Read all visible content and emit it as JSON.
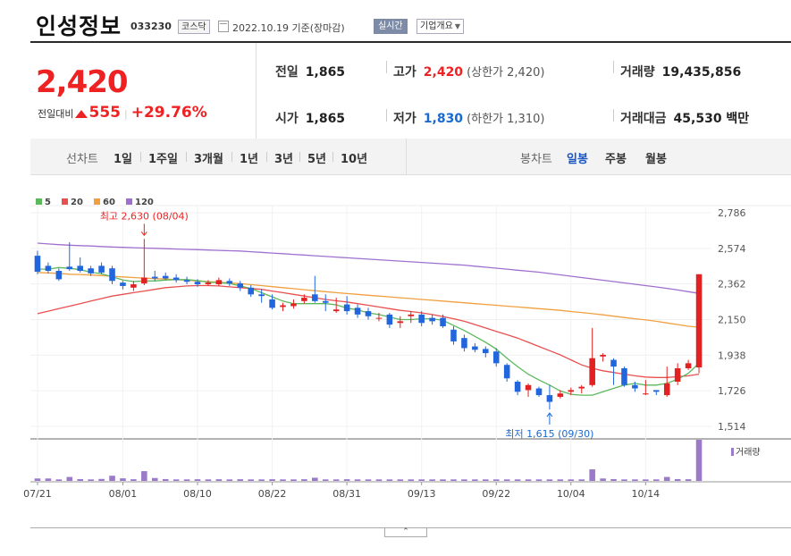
{
  "header": {
    "name": "인성정보",
    "code": "033230",
    "market": "코스닥",
    "date": "2022.10.19 기준(장마감)",
    "live": "실시간",
    "overview": "기업개요"
  },
  "price": {
    "current": "2,420",
    "change_label": "전일대비",
    "change": "555",
    "change_pct": "+29.76%"
  },
  "stats": {
    "prev_close_label": "전일",
    "prev_close": "1,865",
    "high_label": "고가",
    "high": "2,420",
    "high_sub": "(상한가 2,420)",
    "volume_label": "거래량",
    "volume": "19,435,856",
    "open_label": "시가",
    "open": "1,865",
    "low_label": "저가",
    "low": "1,830",
    "low_sub": "(하한가 1,310)",
    "amount_label": "거래대금",
    "amount": "45,530 백만"
  },
  "tabs": {
    "line_label": "선차트",
    "periods": [
      "1일",
      "1주일",
      "3개월",
      "1년",
      "3년",
      "5년",
      "10년"
    ],
    "candle_label": "봉차트",
    "candles": [
      "일봉",
      "주봉",
      "월봉"
    ],
    "active_candle": "일봉"
  },
  "colors": {
    "up": "#e22222",
    "down": "#2266dd",
    "ma5": "#5cb85c",
    "ma20": "#e85050",
    "ma60": "#f0a040",
    "ma120": "#a070d0",
    "volume": "#9b7ac9"
  },
  "chart_data": {
    "type": "candlestick",
    "legend": [
      {
        "name": "5",
        "color": "#5cb85c"
      },
      {
        "name": "20",
        "color": "#e85050"
      },
      {
        "name": "60",
        "color": "#f0a040"
      },
      {
        "name": "120",
        "color": "#a070d0"
      }
    ],
    "y_ticks": [
      2786,
      2574,
      2362,
      2150,
      1938,
      1726,
      1514
    ],
    "y_tick_labels": [
      "2,786",
      "2,574",
      "2,362",
      "2,150",
      "1,938",
      "1,726",
      "1,514"
    ],
    "ylim": [
      1514,
      2786
    ],
    "x_ticks": [
      {
        "i": 0,
        "label": "07/21"
      },
      {
        "i": 8,
        "label": "08/01"
      },
      {
        "i": 15,
        "label": "08/10"
      },
      {
        "i": 22,
        "label": "08/22"
      },
      {
        "i": 29,
        "label": "08/31"
      },
      {
        "i": 36,
        "label": "09/13"
      },
      {
        "i": 43,
        "label": "09/22"
      },
      {
        "i": 50,
        "label": "10/04"
      },
      {
        "i": 57,
        "label": "10/14"
      }
    ],
    "annotation_high": {
      "i": 10,
      "value": 2630,
      "text": "최고 2,630 (08/04)"
    },
    "annotation_low": {
      "i": 48,
      "value": 1615,
      "text": "최저 1,615 (09/30)"
    },
    "volume_label": "거래량",
    "candles": [
      [
        2530,
        2435,
        2560,
        2420
      ],
      [
        2470,
        2440,
        2490,
        2425
      ],
      [
        2440,
        2390,
        2455,
        2380
      ],
      [
        2465,
        2450,
        2610,
        2440
      ],
      [
        2470,
        2440,
        2520,
        2430
      ],
      [
        2455,
        2425,
        2470,
        2410
      ],
      [
        2470,
        2430,
        2490,
        2420
      ],
      [
        2455,
        2380,
        2470,
        2360
      ],
      [
        2370,
        2350,
        2380,
        2330
      ],
      [
        2340,
        2360,
        2380,
        2320
      ],
      [
        2365,
        2400,
        2630,
        2355
      ],
      [
        2405,
        2395,
        2440,
        2380
      ],
      [
        2410,
        2395,
        2430,
        2385
      ],
      [
        2400,
        2385,
        2420,
        2370
      ],
      [
        2385,
        2375,
        2405,
        2360
      ],
      [
        2375,
        2360,
        2390,
        2345
      ],
      [
        2360,
        2370,
        2385,
        2350
      ],
      [
        2360,
        2385,
        2400,
        2350
      ],
      [
        2380,
        2365,
        2395,
        2350
      ],
      [
        2365,
        2340,
        2380,
        2320
      ],
      [
        2340,
        2300,
        2355,
        2285
      ],
      [
        2300,
        2290,
        2330,
        2250
      ],
      [
        2270,
        2220,
        2300,
        2210
      ],
      [
        2225,
        2235,
        2250,
        2200
      ],
      [
        2230,
        2245,
        2270,
        2215
      ],
      [
        2260,
        2280,
        2300,
        2245
      ],
      [
        2300,
        2260,
        2410,
        2250
      ],
      [
        2260,
        2250,
        2300,
        2200
      ],
      [
        2200,
        2210,
        2280,
        2190
      ],
      [
        2240,
        2200,
        2290,
        2180
      ],
      [
        2220,
        2180,
        2240,
        2160
      ],
      [
        2200,
        2170,
        2220,
        2150
      ],
      [
        2160,
        2160,
        2190,
        2140
      ],
      [
        2180,
        2120,
        2190,
        2100
      ],
      [
        2130,
        2140,
        2170,
        2100
      ],
      [
        2170,
        2180,
        2200,
        2130
      ],
      [
        2180,
        2130,
        2200,
        2110
      ],
      [
        2160,
        2140,
        2180,
        2120
      ],
      [
        2160,
        2110,
        2180,
        2100
      ],
      [
        2090,
        2020,
        2110,
        2000
      ],
      [
        2040,
        1980,
        2060,
        1960
      ],
      [
        1990,
        1970,
        2010,
        1955
      ],
      [
        1975,
        1950,
        1990,
        1925
      ],
      [
        1960,
        1890,
        1980,
        1870
      ],
      [
        1880,
        1800,
        1890,
        1780
      ],
      [
        1780,
        1720,
        1790,
        1700
      ],
      [
        1730,
        1760,
        1770,
        1690
      ],
      [
        1740,
        1700,
        1750,
        1690
      ],
      [
        1700,
        1660,
        1760,
        1615
      ],
      [
        1690,
        1710,
        1730,
        1680
      ],
      [
        1720,
        1730,
        1745,
        1700
      ],
      [
        1740,
        1750,
        1760,
        1710
      ],
      [
        1760,
        1920,
        2100,
        1750
      ],
      [
        1930,
        1940,
        1950,
        1900
      ],
      [
        1910,
        1870,
        1920,
        1760
      ],
      [
        1860,
        1760,
        1870,
        1750
      ],
      [
        1760,
        1740,
        1780,
        1720
      ],
      [
        1710,
        1710,
        1790,
        1700
      ],
      [
        1730,
        1720,
        1730,
        1700
      ],
      [
        1700,
        1770,
        1870,
        1690
      ],
      [
        1780,
        1860,
        1890,
        1760
      ],
      [
        1860,
        1890,
        1910,
        1850
      ],
      [
        1865,
        2420,
        2420,
        1830
      ]
    ],
    "ma5": [
      2450,
      2450,
      2460,
      2455,
      2447,
      2432,
      2423,
      2405,
      2385,
      2376,
      2380,
      2380,
      2385,
      2388,
      2388,
      2382,
      2373,
      2370,
      2365,
      2350,
      2335,
      2310,
      2285,
      2260,
      2245,
      2245,
      2245,
      2245,
      2238,
      2218,
      2208,
      2190,
      2180,
      2165,
      2150,
      2150,
      2155,
      2155,
      2145,
      2115,
      2085,
      2050,
      2015,
      1975,
      1920,
      1870,
      1825,
      1790,
      1760,
      1725,
      1705,
      1700,
      1700,
      1720,
      1740,
      1760,
      1770,
      1760,
      1760,
      1770,
      1795,
      1830,
      1890
    ],
    "ma20": [
      2185,
      2200,
      2215,
      2230,
      2245,
      2260,
      2275,
      2290,
      2300,
      2310,
      2320,
      2330,
      2340,
      2345,
      2350,
      2352,
      2352,
      2350,
      2345,
      2340,
      2335,
      2330,
      2320,
      2310,
      2300,
      2290,
      2280,
      2270,
      2262,
      2255,
      2245,
      2235,
      2225,
      2215,
      2205,
      2198,
      2190,
      2180,
      2168,
      2155,
      2140,
      2120,
      2100,
      2080,
      2060,
      2040,
      2015,
      1990,
      1965,
      1940,
      1910,
      1880,
      1860,
      1845,
      1835,
      1825,
      1815,
      1808,
      1805,
      1805,
      1810,
      1815,
      1825
    ],
    "ma60": [
      2430,
      2428,
      2425,
      2420,
      2418,
      2415,
      2412,
      2408,
      2404,
      2400,
      2397,
      2394,
      2391,
      2388,
      2384,
      2380,
      2376,
      2372,
      2368,
      2364,
      2358,
      2352,
      2346,
      2340,
      2334,
      2328,
      2322,
      2316,
      2310,
      2305,
      2300,
      2295,
      2290,
      2285,
      2280,
      2275,
      2270,
      2265,
      2260,
      2255,
      2250,
      2245,
      2240,
      2235,
      2230,
      2225,
      2220,
      2215,
      2210,
      2205,
      2198,
      2192,
      2185,
      2178,
      2170,
      2162,
      2155,
      2148,
      2140,
      2130,
      2120,
      2110,
      2105
    ],
    "ma120": [
      2605,
      2600,
      2596,
      2593,
      2590,
      2588,
      2585,
      2582,
      2580,
      2578,
      2576,
      2574,
      2572,
      2570,
      2568,
      2566,
      2564,
      2562,
      2560,
      2558,
      2554,
      2550,
      2546,
      2542,
      2538,
      2534,
      2530,
      2526,
      2522,
      2518,
      2514,
      2510,
      2506,
      2502,
      2498,
      2494,
      2490,
      2486,
      2482,
      2478,
      2474,
      2468,
      2462,
      2456,
      2450,
      2444,
      2438,
      2432,
      2424,
      2416,
      2408,
      2400,
      2392,
      2384,
      2376,
      2368,
      2360,
      2352,
      2344,
      2336,
      2326,
      2316,
      2306
    ],
    "volume": [
      1.6,
      1.6,
      1.0,
      2.6,
      1.2,
      1.0,
      1.3,
      3.4,
      1.7,
      1.1,
      6.4,
      1.9,
      1.2,
      1.0,
      1.0,
      1.1,
      1.0,
      1.1,
      1.0,
      1.1,
      1.0,
      1.0,
      1.1,
      1.0,
      1.0,
      1.1,
      2.1,
      1.0,
      1.0,
      1.1,
      1.0,
      1.0,
      1.0,
      1.0,
      1.0,
      1.0,
      1.0,
      1.0,
      1.0,
      1.0,
      1.0,
      1.0,
      1.0,
      1.0,
      1.0,
      1.0,
      1.0,
      1.0,
      1.0,
      1.0,
      1.0,
      1.0,
      7.6,
      1.6,
      1.2,
      1.0,
      1.0,
      1.0,
      1.0,
      2.6,
      1.2,
      1.1,
      27
    ]
  }
}
